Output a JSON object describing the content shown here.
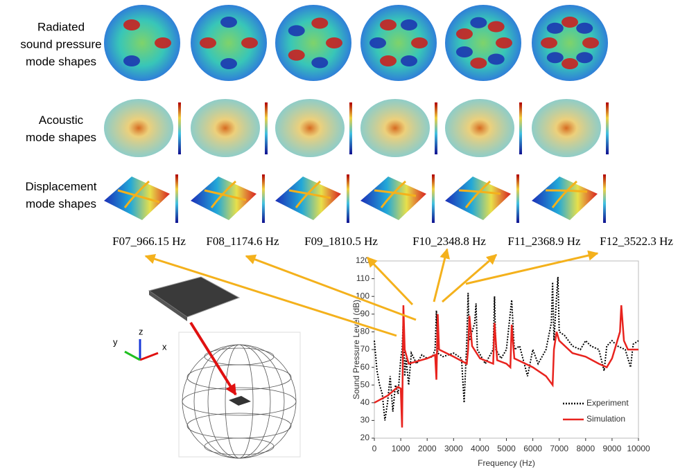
{
  "row_labels": [
    [
      "Radiated",
      "sound pressure",
      "mode shapes"
    ],
    [
      "Acoustic",
      "mode shapes"
    ],
    [
      "Displacement",
      "mode shapes"
    ]
  ],
  "mode_labels": [
    "F07_966.15 Hz",
    "F08_1174.6 Hz",
    "F09_1810.5 Hz",
    "F10_2348.8 Hz",
    "F11_2368.9 Hz",
    "F12_3522.3 Hz"
  ],
  "axes_triad": {
    "z": "z",
    "y": "y",
    "x": "x"
  },
  "chart_data": {
    "type": "line",
    "xlabel": "Frequency (Hz)",
    "ylabel": "Sound Pressure Level (dB)",
    "xlim": [
      0,
      10000
    ],
    "ylim": [
      20,
      120
    ],
    "xticks": [
      0,
      1000,
      2000,
      3000,
      4000,
      5000,
      6000,
      7000,
      8000,
      9000,
      10000
    ],
    "yticks": [
      20,
      30,
      40,
      50,
      60,
      70,
      80,
      90,
      100,
      110,
      120
    ],
    "series": [
      {
        "name": "Experiment",
        "color": "#000000",
        "style": "dotted",
        "x": [
          0,
          100,
          200,
          300,
          400,
          500,
          600,
          700,
          800,
          900,
          1000,
          1050,
          1100,
          1150,
          1200,
          1300,
          1400,
          1600,
          1800,
          2000,
          2200,
          2300,
          2350,
          2400,
          2600,
          3000,
          3300,
          3400,
          3500,
          3550,
          3600,
          3800,
          3850,
          3900,
          4200,
          4500,
          4550,
          4600,
          4800,
          5000,
          5200,
          5300,
          5500,
          5800,
          6000,
          6200,
          6500,
          6700,
          6750,
          6800,
          6900,
          6950,
          7000,
          7200,
          7500,
          7800,
          8000,
          8200,
          8500,
          8700,
          8800,
          9000,
          9200,
          9500,
          9700,
          9800,
          10000
        ],
        "values": [
          75,
          58,
          50,
          45,
          30,
          40,
          55,
          35,
          50,
          45,
          65,
          70,
          88,
          55,
          65,
          50,
          68,
          62,
          67,
          65,
          66,
          70,
          92,
          68,
          66,
          68,
          65,
          40,
          75,
          102,
          75,
          85,
          96,
          70,
          62,
          70,
          100,
          70,
          65,
          70,
          98,
          70,
          72,
          55,
          70,
          62,
          70,
          85,
          108,
          75,
          100,
          111,
          80,
          78,
          72,
          70,
          75,
          72,
          70,
          58,
          72,
          75,
          72,
          70,
          60,
          73,
          75
        ]
      },
      {
        "name": "Simulation",
        "color": "#e8231e",
        "style": "solid",
        "x": [
          0,
          500,
          900,
          1000,
          1050,
          1100,
          1150,
          1300,
          2000,
          2300,
          2350,
          2400,
          2450,
          3000,
          3500,
          3550,
          3600,
          3700,
          4000,
          4500,
          4550,
          4650,
          5000,
          5150,
          5200,
          5300,
          6000,
          6500,
          6750,
          6800,
          6900,
          7000,
          7500,
          8000,
          8500,
          8800,
          9000,
          9300,
          9350,
          9450,
          9600,
          10000
        ],
        "values": [
          40,
          44,
          49,
          48,
          26,
          95,
          70,
          62,
          65,
          67,
          53,
          90,
          70,
          66,
          62,
          70,
          89,
          72,
          65,
          62,
          85,
          64,
          62,
          60,
          84,
          65,
          60,
          55,
          50,
          70,
          80,
          75,
          68,
          66,
          62,
          60,
          65,
          80,
          95,
          75,
          70,
          70
        ]
      }
    ]
  }
}
